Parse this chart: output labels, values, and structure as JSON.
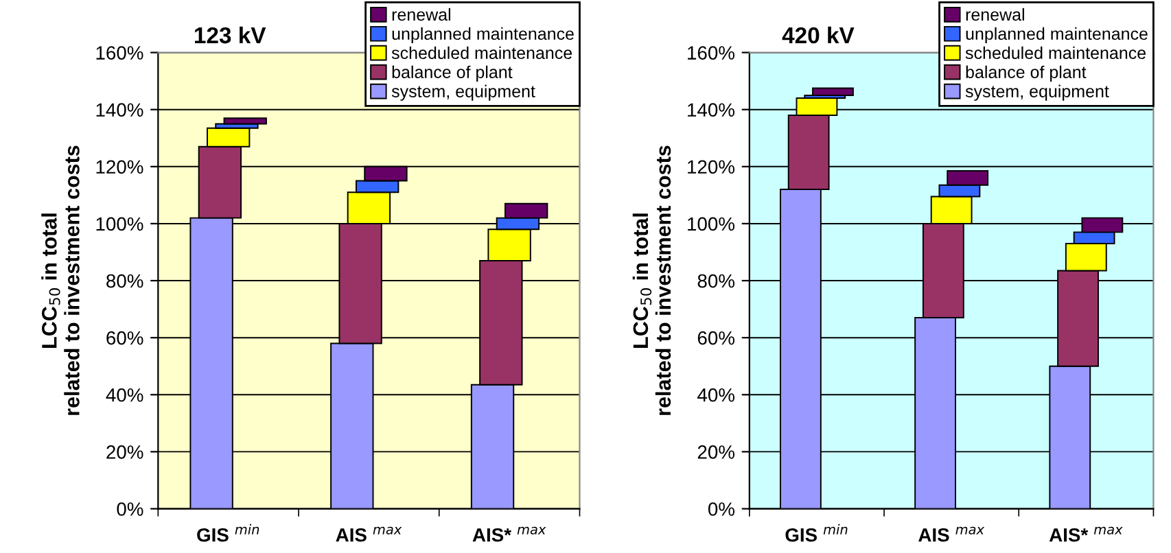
{
  "chart_data": [
    {
      "type": "bar",
      "title": "123 kV",
      "ylabel": "LCC$_{50}$ in total\nrelated to investment costs",
      "categories": [
        "GIS $^{min}$",
        "AIS $^{max}$",
        "AIS* $^{max}$"
      ],
      "stacked": true,
      "ylim": [
        0,
        160
      ],
      "yticks": [
        {
          "value": 0,
          "label": "0%"
        },
        {
          "value": 20,
          "label": "20%"
        },
        {
          "value": 40,
          "label": "40%"
        },
        {
          "value": 60,
          "label": "60%"
        },
        {
          "value": 80,
          "label": "80%"
        },
        {
          "value": 100,
          "label": "100%"
        },
        {
          "value": 120,
          "label": "120%"
        },
        {
          "value": 140,
          "label": "140%"
        },
        {
          "value": 160,
          "label": "160%"
        }
      ],
      "grid": "y",
      "legend": "top right",
      "series": [
        {
          "name": "system, equipment",
          "color": "#9999ff",
          "values": [
            102,
            58,
            43.5
          ]
        },
        {
          "name": "balance of plant",
          "color": "#993366",
          "values": [
            25,
            42,
            43.5
          ]
        },
        {
          "name": "scheduled maintenance",
          "color": "#ffff00",
          "values": [
            6.5,
            11,
            11
          ]
        },
        {
          "name": "unplanned maintenance",
          "color": "#3366ff",
          "values": [
            1.5,
            4,
            4
          ]
        },
        {
          "name": "renewal",
          "color": "#660066",
          "values": [
            2,
            5,
            5
          ]
        }
      ]
    },
    {
      "type": "bar",
      "title": "420 kV",
      "ylabel": "LCC$_{50}$ in total\nrelated to investment costs",
      "categories": [
        "GIS $^{min}$",
        "AIS $^{max}$",
        "AIS* $^{max}$"
      ],
      "stacked": true,
      "ylim": [
        0,
        160
      ],
      "yticks": [
        {
          "value": 0,
          "label": "0%"
        },
        {
          "value": 20,
          "label": "20%"
        },
        {
          "value": 40,
          "label": "40%"
        },
        {
          "value": 60,
          "label": "60%"
        },
        {
          "value": 80,
          "label": "80%"
        },
        {
          "value": 100,
          "label": "100%"
        },
        {
          "value": 120,
          "label": "120%"
        },
        {
          "value": 140,
          "label": "140%"
        },
        {
          "value": 160,
          "label": "160%"
        }
      ],
      "grid": "y",
      "legend": "top right",
      "series": [
        {
          "name": "system, equipment",
          "color": "#9999ff",
          "values": [
            112,
            67,
            50
          ]
        },
        {
          "name": "balance of plant",
          "color": "#993366",
          "values": [
            26,
            33,
            33.5
          ]
        },
        {
          "name": "scheduled maintenance",
          "color": "#ffff00",
          "values": [
            6,
            9.5,
            9.5
          ]
        },
        {
          "name": "unplanned maintenance",
          "color": "#3366ff",
          "values": [
            1,
            4,
            4
          ]
        },
        {
          "name": "renewal",
          "color": "#660066",
          "values": [
            2.5,
            5,
            5
          ]
        }
      ]
    }
  ]
}
